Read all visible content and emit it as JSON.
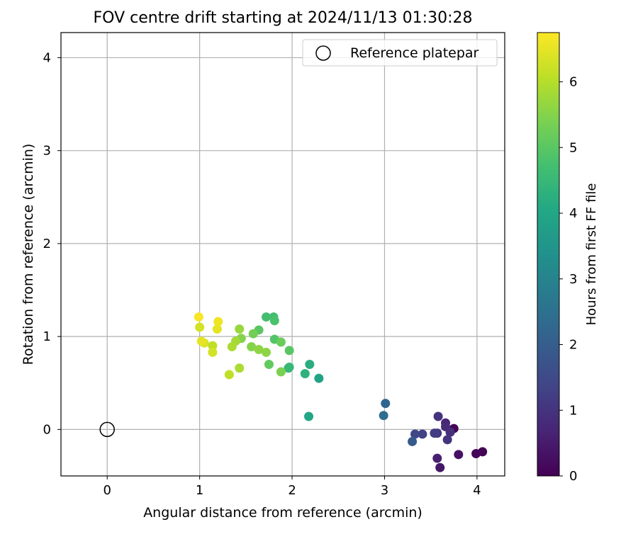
{
  "chart_data": {
    "type": "scatter",
    "title": "FOV centre drift starting at 2024/11/13 01:30:28",
    "xlabel": "Angular distance from reference (arcmin)",
    "ylabel": "Rotation from reference (arcmin)",
    "xlim": [
      -0.5,
      4.3
    ],
    "ylim": [
      -0.5,
      4.27
    ],
    "x_ticks": [
      0,
      1,
      2,
      3,
      4
    ],
    "y_ticks": [
      0,
      1,
      2,
      3,
      4
    ],
    "grid": true,
    "legend": {
      "location": "top-right",
      "entries": [
        "Reference platepar"
      ]
    },
    "colorbar": {
      "label": "Hours from first FF file",
      "colormap": "viridis",
      "min": 0,
      "max": 6.75,
      "ticks": [
        0,
        1,
        2,
        3,
        4,
        5,
        6
      ]
    },
    "reference_point": {
      "x": 0,
      "y": 0,
      "marker": "open-circle"
    },
    "points": [
      {
        "x": 3.75,
        "y": 0.01,
        "c": 0.05
      },
      {
        "x": 4.06,
        "y": -0.24,
        "c": 0.05
      },
      {
        "x": 3.99,
        "y": -0.26,
        "c": 0.1
      },
      {
        "x": 3.8,
        "y": -0.27,
        "c": 0.3
      },
      {
        "x": 3.6,
        "y": -0.41,
        "c": 0.4
      },
      {
        "x": 3.57,
        "y": -0.31,
        "c": 0.6
      },
      {
        "x": 3.66,
        "y": 0.07,
        "c": 0.7
      },
      {
        "x": 3.66,
        "y": 0.03,
        "c": 0.8
      },
      {
        "x": 3.71,
        "y": -0.03,
        "c": 0.9
      },
      {
        "x": 3.68,
        "y": -0.11,
        "c": 1.0
      },
      {
        "x": 3.58,
        "y": 0.14,
        "c": 1.0
      },
      {
        "x": 3.57,
        "y": -0.04,
        "c": 1.1
      },
      {
        "x": 3.54,
        "y": -0.04,
        "c": 1.2
      },
      {
        "x": 3.41,
        "y": -0.05,
        "c": 1.3
      },
      {
        "x": 3.33,
        "y": -0.05,
        "c": 1.4
      },
      {
        "x": 3.3,
        "y": -0.13,
        "c": 1.9
      },
      {
        "x": 3.01,
        "y": 0.28,
        "c": 2.2
      },
      {
        "x": 2.99,
        "y": 0.15,
        "c": 2.4
      },
      {
        "x": 2.29,
        "y": 0.55,
        "c": 3.9
      },
      {
        "x": 2.18,
        "y": 0.14,
        "c": 4.0
      },
      {
        "x": 2.19,
        "y": 0.7,
        "c": 4.2
      },
      {
        "x": 2.14,
        "y": 0.6,
        "c": 4.3
      },
      {
        "x": 1.96,
        "y": 0.66,
        "c": 4.5
      },
      {
        "x": 1.97,
        "y": 0.67,
        "c": 4.5
      },
      {
        "x": 1.8,
        "y": 1.21,
        "c": 4.7
      },
      {
        "x": 1.72,
        "y": 1.21,
        "c": 4.7
      },
      {
        "x": 1.81,
        "y": 1.17,
        "c": 4.8
      },
      {
        "x": 1.81,
        "y": 0.97,
        "c": 4.9
      },
      {
        "x": 1.97,
        "y": 0.85,
        "c": 5.0
      },
      {
        "x": 1.64,
        "y": 1.07,
        "c": 5.0
      },
      {
        "x": 1.75,
        "y": 0.7,
        "c": 5.1
      },
      {
        "x": 1.88,
        "y": 0.94,
        "c": 5.2
      },
      {
        "x": 1.58,
        "y": 1.03,
        "c": 5.3
      },
      {
        "x": 1.88,
        "y": 0.62,
        "c": 5.4
      },
      {
        "x": 1.45,
        "y": 0.98,
        "c": 5.5
      },
      {
        "x": 1.56,
        "y": 0.89,
        "c": 5.5
      },
      {
        "x": 1.64,
        "y": 0.86,
        "c": 5.6
      },
      {
        "x": 1.72,
        "y": 0.83,
        "c": 5.6
      },
      {
        "x": 1.43,
        "y": 1.08,
        "c": 5.7
      },
      {
        "x": 1.39,
        "y": 0.95,
        "c": 5.8
      },
      {
        "x": 1.35,
        "y": 0.89,
        "c": 5.9
      },
      {
        "x": 1.43,
        "y": 0.66,
        "c": 5.9
      },
      {
        "x": 1.32,
        "y": 0.59,
        "c": 6.1
      },
      {
        "x": 1.14,
        "y": 0.9,
        "c": 6.1
      },
      {
        "x": 1.14,
        "y": 0.83,
        "c": 6.3
      },
      {
        "x": 1.0,
        "y": 1.1,
        "c": 6.3
      },
      {
        "x": 1.05,
        "y": 0.93,
        "c": 6.4
      },
      {
        "x": 1.02,
        "y": 0.95,
        "c": 6.5
      },
      {
        "x": 1.19,
        "y": 1.08,
        "c": 6.5
      },
      {
        "x": 1.2,
        "y": 1.16,
        "c": 6.6
      },
      {
        "x": 0.99,
        "y": 1.21,
        "c": 6.7
      }
    ]
  }
}
